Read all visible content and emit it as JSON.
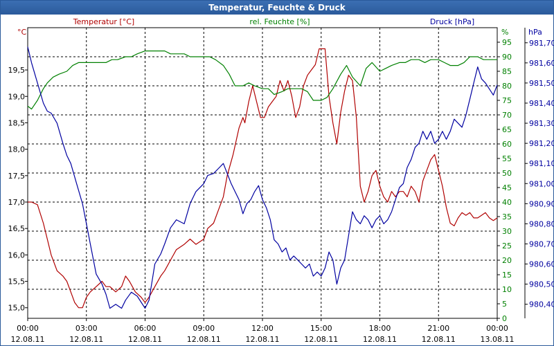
{
  "chart_data": {
    "type": "line",
    "title": "Temperatur, Feuchte & Druck",
    "x_ticks": [
      {
        "time": "00:00",
        "date": "12.08.11"
      },
      {
        "time": "03:00",
        "date": "12.08.11"
      },
      {
        "time": "06:00",
        "date": "12.08.11"
      },
      {
        "time": "09:00",
        "date": "12.08.11"
      },
      {
        "time": "12:00",
        "date": "12.08.11"
      },
      {
        "time": "15:00",
        "date": "12.08.11"
      },
      {
        "time": "18:00",
        "date": "12.08.11"
      },
      {
        "time": "21:00",
        "date": "12.08.11"
      },
      {
        "time": "00:00",
        "date": "13.08.11"
      }
    ],
    "xlim": [
      0,
      24
    ],
    "grid": true,
    "temperature_axis": {
      "label": "Temperatur [°C]",
      "unit": "°C",
      "color": "#b00000",
      "ylim": [
        14.8,
        20.3
      ],
      "ticks": [
        "15,0",
        "15,5",
        "16,0",
        "16,5",
        "17,0",
        "17,5",
        "18,0",
        "18,5",
        "19,0",
        "19,5"
      ],
      "tick_values": [
        15.0,
        15.5,
        16.0,
        16.5,
        17.0,
        17.5,
        18.0,
        18.5,
        19.0,
        19.5
      ]
    },
    "humidity_axis": {
      "label": "rel. Feuchte [%]",
      "unit": "%",
      "color": "#008000",
      "ylim": [
        0,
        100
      ],
      "ticks": [
        "0",
        "5",
        "10",
        "15",
        "20",
        "25",
        "30",
        "35",
        "40",
        "45",
        "50",
        "55",
        "60",
        "65",
        "70",
        "75",
        "80",
        "85",
        "90",
        "95"
      ],
      "tick_values": [
        0,
        5,
        10,
        15,
        20,
        25,
        30,
        35,
        40,
        45,
        50,
        55,
        60,
        65,
        70,
        75,
        80,
        85,
        90,
        95
      ]
    },
    "pressure_axis": {
      "label": "Druck [hPa]",
      "unit": "hPa",
      "color": "#0000a0",
      "ylim": [
        980.33,
        981.775
      ],
      "ticks": [
        "980,40",
        "980,50",
        "980,60",
        "980,70",
        "980,80",
        "980,90",
        "981,00",
        "981,10",
        "981,20",
        "981,30",
        "981,40",
        "981,50",
        "981,60",
        "981,70"
      ],
      "tick_values": [
        980.4,
        980.5,
        980.6,
        980.7,
        980.8,
        980.9,
        981.0,
        981.1,
        981.2,
        981.3,
        981.4,
        981.5,
        981.6,
        981.7
      ]
    },
    "series": [
      {
        "name": "Temperatur [°C]",
        "axis": "temperature",
        "color": "#b00000",
        "x": [
          0,
          0.2,
          0.5,
          0.8,
          1.0,
          1.2,
          1.5,
          1.8,
          2.0,
          2.2,
          2.4,
          2.6,
          2.8,
          3.0,
          3.2,
          3.5,
          3.8,
          4.0,
          4.2,
          4.5,
          4.8,
          5.0,
          5.2,
          5.5,
          5.8,
          6.0,
          6.2,
          6.5,
          6.8,
          7.0,
          7.3,
          7.6,
          8.0,
          8.3,
          8.6,
          9.0,
          9.2,
          9.5,
          9.8,
          10.0,
          10.2,
          10.5,
          10.8,
          11.0,
          11.1,
          11.3,
          11.5,
          11.7,
          11.9,
          12.1,
          12.3,
          12.5,
          12.7,
          12.9,
          13.1,
          13.3,
          13.5,
          13.7,
          13.9,
          14.1,
          14.3,
          14.5,
          14.7,
          14.9,
          15.0,
          15.1,
          15.2,
          15.4,
          15.6,
          15.8,
          16.0,
          16.2,
          16.4,
          16.6,
          16.8,
          17.0,
          17.2,
          17.4,
          17.6,
          17.8,
          18.0,
          18.2,
          18.4,
          18.6,
          18.8,
          19.0,
          19.2,
          19.4,
          19.6,
          19.8,
          20.0,
          20.2,
          20.4,
          20.6,
          20.8,
          21.0,
          21.2,
          21.4,
          21.6,
          21.8,
          22.0,
          22.2,
          22.4,
          22.6,
          22.8,
          23.0,
          23.2,
          23.4,
          23.6,
          23.8,
          24.0
        ],
        "values": [
          17.0,
          17.0,
          16.95,
          16.6,
          16.3,
          16.0,
          15.7,
          15.6,
          15.5,
          15.3,
          15.1,
          15.0,
          15.0,
          15.2,
          15.3,
          15.4,
          15.5,
          15.4,
          15.4,
          15.3,
          15.4,
          15.6,
          15.5,
          15.3,
          15.2,
          15.1,
          15.2,
          15.4,
          15.6,
          15.7,
          15.9,
          16.1,
          16.2,
          16.3,
          16.2,
          16.3,
          16.5,
          16.6,
          16.9,
          17.1,
          17.5,
          17.9,
          18.4,
          18.6,
          18.5,
          18.9,
          19.2,
          18.9,
          18.6,
          18.6,
          18.8,
          18.9,
          19.0,
          19.3,
          19.1,
          19.3,
          19.0,
          18.6,
          18.8,
          19.2,
          19.4,
          19.5,
          19.6,
          19.9,
          19.9,
          19.9,
          19.9,
          19.0,
          18.5,
          18.1,
          18.7,
          19.1,
          19.4,
          19.3,
          18.6,
          17.3,
          17.0,
          17.2,
          17.5,
          17.6,
          17.3,
          17.1,
          17.0,
          17.2,
          17.1,
          17.2,
          17.2,
          17.1,
          17.3,
          17.2,
          17.0,
          17.4,
          17.6,
          17.8,
          17.9,
          17.6,
          17.3,
          16.9,
          16.6,
          16.55,
          16.7,
          16.8,
          16.75,
          16.8,
          16.7,
          16.7,
          16.75,
          16.8,
          16.7,
          16.65,
          16.7
        ],
        "note": "values estimated from gridlines"
      },
      {
        "name": "rel. Feuchte [%]",
        "axis": "humidity",
        "color": "#008000",
        "x": [
          0,
          0.2,
          0.5,
          0.8,
          1.0,
          1.3,
          1.6,
          2.0,
          2.3,
          2.6,
          3.0,
          3.3,
          3.6,
          4.0,
          4.3,
          4.6,
          5.0,
          5.3,
          5.6,
          6.0,
          6.3,
          6.6,
          7.0,
          7.3,
          7.6,
          8.0,
          8.3,
          8.6,
          9.0,
          9.3,
          9.6,
          10.0,
          10.3,
          10.6,
          11.0,
          11.3,
          11.6,
          12.0,
          12.3,
          12.6,
          13.0,
          13.3,
          13.6,
          14.0,
          14.3,
          14.6,
          15.0,
          15.3,
          15.6,
          16.0,
          16.3,
          16.6,
          17.0,
          17.3,
          17.6,
          18.0,
          18.3,
          18.6,
          19.0,
          19.3,
          19.6,
          20.0,
          20.3,
          20.6,
          21.0,
          21.3,
          21.6,
          22.0,
          22.3,
          22.6,
          23.0,
          23.3,
          23.6,
          24.0
        ],
        "values": [
          73,
          72,
          75,
          79,
          81,
          83,
          84,
          85,
          87,
          88,
          88,
          88,
          88,
          88,
          89,
          89,
          90,
          90,
          91,
          92,
          92,
          92,
          92,
          91,
          91,
          91,
          90,
          90,
          90,
          90,
          89,
          87,
          84,
          80,
          80,
          81,
          80,
          79,
          79,
          77,
          78,
          79,
          79,
          79,
          78,
          75,
          75,
          76,
          79,
          84,
          87,
          83,
          80,
          86,
          88,
          85,
          86,
          87,
          88,
          88,
          89,
          89,
          88,
          89,
          89,
          88,
          87,
          87,
          88,
          90,
          90,
          89,
          89,
          89
        ],
        "note": "values estimated from gridlines"
      },
      {
        "name": "Druck [hPa]",
        "axis": "pressure",
        "color": "#0000a0",
        "x": [
          0,
          0.2,
          0.5,
          0.8,
          1.0,
          1.2,
          1.5,
          1.8,
          2.0,
          2.2,
          2.5,
          2.8,
          3.0,
          3.2,
          3.5,
          3.8,
          4.0,
          4.2,
          4.5,
          4.8,
          5.0,
          5.3,
          5.6,
          6.0,
          6.2,
          6.5,
          6.8,
          7.0,
          7.3,
          7.6,
          8.0,
          8.3,
          8.6,
          9.0,
          9.2,
          9.5,
          9.8,
          10.0,
          10.2,
          10.4,
          10.6,
          10.8,
          11.0,
          11.2,
          11.4,
          11.6,
          11.8,
          12.0,
          12.2,
          12.4,
          12.6,
          12.8,
          13.0,
          13.2,
          13.4,
          13.6,
          13.8,
          14.0,
          14.2,
          14.4,
          14.6,
          14.8,
          15.0,
          15.2,
          15.4,
          15.6,
          15.8,
          16.0,
          16.2,
          16.4,
          16.6,
          16.8,
          17.0,
          17.2,
          17.4,
          17.6,
          17.8,
          18.0,
          18.2,
          18.4,
          18.6,
          18.8,
          19.0,
          19.2,
          19.4,
          19.6,
          19.8,
          20.0,
          20.2,
          20.4,
          20.6,
          20.8,
          21.0,
          21.2,
          21.4,
          21.6,
          21.8,
          22.0,
          22.2,
          22.4,
          22.6,
          22.8,
          23.0,
          23.2,
          23.4,
          23.6,
          23.8,
          24.0
        ],
        "values": [
          981.68,
          981.6,
          981.5,
          981.4,
          981.36,
          981.35,
          981.3,
          981.2,
          981.14,
          981.1,
          981.0,
          980.9,
          980.8,
          980.7,
          980.55,
          980.5,
          980.45,
          980.38,
          980.4,
          980.38,
          980.42,
          980.46,
          980.44,
          980.38,
          980.42,
          980.6,
          980.65,
          980.7,
          980.78,
          980.82,
          980.8,
          980.9,
          980.96,
          981.0,
          981.04,
          981.05,
          981.08,
          981.1,
          981.05,
          981.0,
          980.96,
          980.92,
          980.85,
          980.9,
          980.92,
          980.96,
          980.99,
          980.92,
          980.88,
          980.82,
          980.72,
          980.7,
          980.66,
          980.68,
          980.62,
          980.64,
          980.62,
          980.6,
          980.58,
          980.6,
          980.54,
          980.56,
          980.54,
          980.58,
          980.66,
          980.62,
          980.5,
          980.58,
          980.62,
          980.74,
          980.86,
          980.82,
          980.8,
          980.84,
          980.82,
          980.78,
          980.82,
          980.84,
          980.8,
          980.82,
          980.86,
          980.92,
          980.98,
          981.0,
          981.08,
          981.12,
          981.18,
          981.2,
          981.26,
          981.22,
          981.26,
          981.2,
          981.22,
          981.26,
          981.22,
          981.26,
          981.32,
          981.3,
          981.28,
          981.34,
          981.42,
          981.5,
          981.58,
          981.52,
          981.5,
          981.47,
          981.44,
          981.49
        ],
        "note": "values estimated from gridlines"
      }
    ]
  }
}
